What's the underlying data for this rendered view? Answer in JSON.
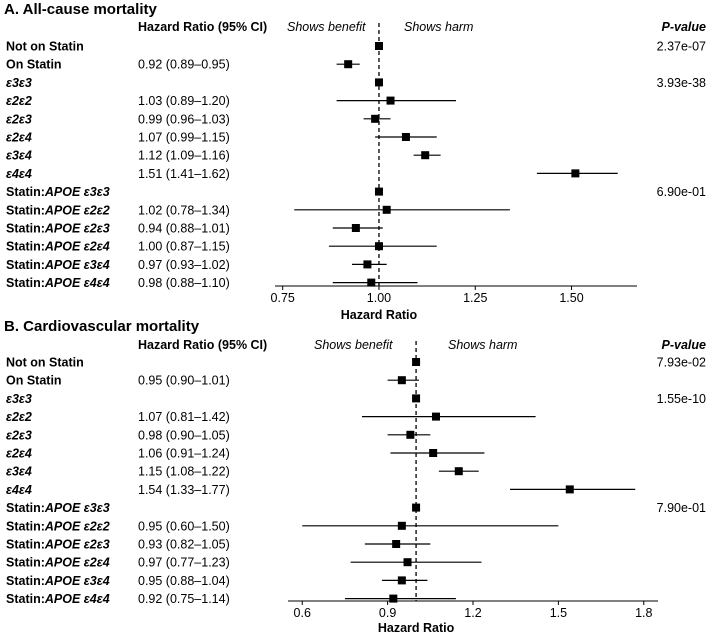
{
  "chart_data": [
    {
      "type": "forest",
      "title": "A. All-cause mortality",
      "header_hr": "Hazard Ratio (95% CI)",
      "header_benefit": "Shows benefit",
      "header_harm": "Shows harm",
      "header_pvalue": "P-value",
      "xlabel": "Hazard Ratio",
      "xlim": [
        0.73,
        1.67
      ],
      "xticks": [
        0.75,
        1.0,
        1.25,
        1.5
      ],
      "xtick_labels": [
        "0.75",
        "1.00",
        "1.25",
        "1.50"
      ],
      "reference": 1.0,
      "rows": [
        {
          "label_pre": "Not on Statin",
          "label_it": "",
          "hr_text": "",
          "hr": 1.0,
          "lo": null,
          "hi": null,
          "pvalue": "2.37e-07"
        },
        {
          "label_pre": "On Statin",
          "label_it": "",
          "hr_text": "0.92 (0.89–0.95)",
          "hr": 0.92,
          "lo": 0.89,
          "hi": 0.95,
          "pvalue": ""
        },
        {
          "label_pre": "",
          "label_it": "ε3ε3",
          "hr_text": "",
          "hr": 1.0,
          "lo": null,
          "hi": null,
          "pvalue": "3.93e-38"
        },
        {
          "label_pre": "",
          "label_it": "ε2ε2",
          "hr_text": "1.03 (0.89–1.20)",
          "hr": 1.03,
          "lo": 0.89,
          "hi": 1.2,
          "pvalue": ""
        },
        {
          "label_pre": "",
          "label_it": "ε2ε3",
          "hr_text": "0.99 (0.96–1.03)",
          "hr": 0.99,
          "lo": 0.96,
          "hi": 1.03,
          "pvalue": ""
        },
        {
          "label_pre": "",
          "label_it": "ε2ε4",
          "hr_text": "1.07 (0.99–1.15)",
          "hr": 1.07,
          "lo": 0.99,
          "hi": 1.15,
          "pvalue": ""
        },
        {
          "label_pre": "",
          "label_it": "ε3ε4",
          "hr_text": "1.12 (1.09–1.16)",
          "hr": 1.12,
          "lo": 1.09,
          "hi": 1.16,
          "pvalue": ""
        },
        {
          "label_pre": "",
          "label_it": "ε4ε4",
          "hr_text": "1.51 (1.41–1.62)",
          "hr": 1.51,
          "lo": 1.41,
          "hi": 1.62,
          "pvalue": ""
        },
        {
          "label_pre": "Statin:",
          "label_it": "APOE ε3ε3",
          "hr_text": "",
          "hr": 1.0,
          "lo": null,
          "hi": null,
          "pvalue": "6.90e-01"
        },
        {
          "label_pre": "Statin:",
          "label_it": "APOE ε2ε2",
          "hr_text": "1.02 (0.78–1.34)",
          "hr": 1.02,
          "lo": 0.78,
          "hi": 1.34,
          "pvalue": ""
        },
        {
          "label_pre": "Statin:",
          "label_it": "APOE ε2ε3",
          "hr_text": "0.94 (0.88–1.01)",
          "hr": 0.94,
          "lo": 0.88,
          "hi": 1.01,
          "pvalue": ""
        },
        {
          "label_pre": "Statin:",
          "label_it": "APOE ε2ε4",
          "hr_text": "1.00 (0.87–1.15)",
          "hr": 1.0,
          "lo": 0.87,
          "hi": 1.15,
          "pvalue": ""
        },
        {
          "label_pre": "Statin:",
          "label_it": "APOE ε3ε4",
          "hr_text": "0.97 (0.93–1.02)",
          "hr": 0.97,
          "lo": 0.93,
          "hi": 1.02,
          "pvalue": ""
        },
        {
          "label_pre": "Statin:",
          "label_it": "APOE ε4ε4",
          "hr_text": "0.98 (0.88–1.10)",
          "hr": 0.98,
          "lo": 0.88,
          "hi": 1.1,
          "pvalue": ""
        }
      ]
    },
    {
      "type": "forest",
      "title": "B. Cardiovascular mortality",
      "header_hr": "Hazard Ratio (95% CI)",
      "header_benefit": "Shows benefit",
      "header_harm": "Shows harm",
      "header_pvalue": "P-value",
      "xlabel": "Hazard Ratio",
      "xlim": [
        0.55,
        1.85
      ],
      "xticks": [
        0.6,
        0.9,
        1.2,
        1.5,
        1.8
      ],
      "xtick_labels": [
        "0.6",
        "0.9",
        "1.2",
        "1.5",
        "1.8"
      ],
      "reference": 1.0,
      "rows": [
        {
          "label_pre": "Not on Statin",
          "label_it": "",
          "hr_text": "",
          "hr": 1.0,
          "lo": null,
          "hi": null,
          "pvalue": "7.93e-02"
        },
        {
          "label_pre": "On Statin",
          "label_it": "",
          "hr_text": "0.95 (0.90–1.01)",
          "hr": 0.95,
          "lo": 0.9,
          "hi": 1.01,
          "pvalue": ""
        },
        {
          "label_pre": "",
          "label_it": "ε3ε3",
          "hr_text": "",
          "hr": 1.0,
          "lo": null,
          "hi": null,
          "pvalue": "1.55e-10"
        },
        {
          "label_pre": "",
          "label_it": "ε2ε2",
          "hr_text": "1.07 (0.81–1.42)",
          "hr": 1.07,
          "lo": 0.81,
          "hi": 1.42,
          "pvalue": ""
        },
        {
          "label_pre": "",
          "label_it": "ε2ε3",
          "hr_text": "0.98 (0.90–1.05)",
          "hr": 0.98,
          "lo": 0.9,
          "hi": 1.05,
          "pvalue": ""
        },
        {
          "label_pre": "",
          "label_it": "ε2ε4",
          "hr_text": "1.06 (0.91–1.24)",
          "hr": 1.06,
          "lo": 0.91,
          "hi": 1.24,
          "pvalue": ""
        },
        {
          "label_pre": "",
          "label_it": "ε3ε4",
          "hr_text": "1.15 (1.08–1.22)",
          "hr": 1.15,
          "lo": 1.08,
          "hi": 1.22,
          "pvalue": ""
        },
        {
          "label_pre": "",
          "label_it": "ε4ε4",
          "hr_text": "1.54 (1.33–1.77)",
          "hr": 1.54,
          "lo": 1.33,
          "hi": 1.77,
          "pvalue": ""
        },
        {
          "label_pre": "Statin:",
          "label_it": "APOE ε3ε3",
          "hr_text": "",
          "hr": 1.0,
          "lo": null,
          "hi": null,
          "pvalue": "7.90e-01"
        },
        {
          "label_pre": "Statin:",
          "label_it": "APOE ε2ε2",
          "hr_text": "0.95 (0.60–1.50)",
          "hr": 0.95,
          "lo": 0.6,
          "hi": 1.5,
          "pvalue": ""
        },
        {
          "label_pre": "Statin:",
          "label_it": "APOE ε2ε3",
          "hr_text": "0.93 (0.82–1.05)",
          "hr": 0.93,
          "lo": 0.82,
          "hi": 1.05,
          "pvalue": ""
        },
        {
          "label_pre": "Statin:",
          "label_it": "APOE ε2ε4",
          "hr_text": "0.97 (0.77–1.23)",
          "hr": 0.97,
          "lo": 0.77,
          "hi": 1.23,
          "pvalue": ""
        },
        {
          "label_pre": "Statin:",
          "label_it": "APOE ε3ε4",
          "hr_text": "0.95 (0.88–1.04)",
          "hr": 0.95,
          "lo": 0.88,
          "hi": 1.04,
          "pvalue": ""
        },
        {
          "label_pre": "Statin:",
          "label_it": "APOE ε4ε4",
          "hr_text": "0.92 (0.75–1.14)",
          "hr": 0.92,
          "lo": 0.75,
          "hi": 1.14,
          "pvalue": ""
        }
      ]
    }
  ]
}
